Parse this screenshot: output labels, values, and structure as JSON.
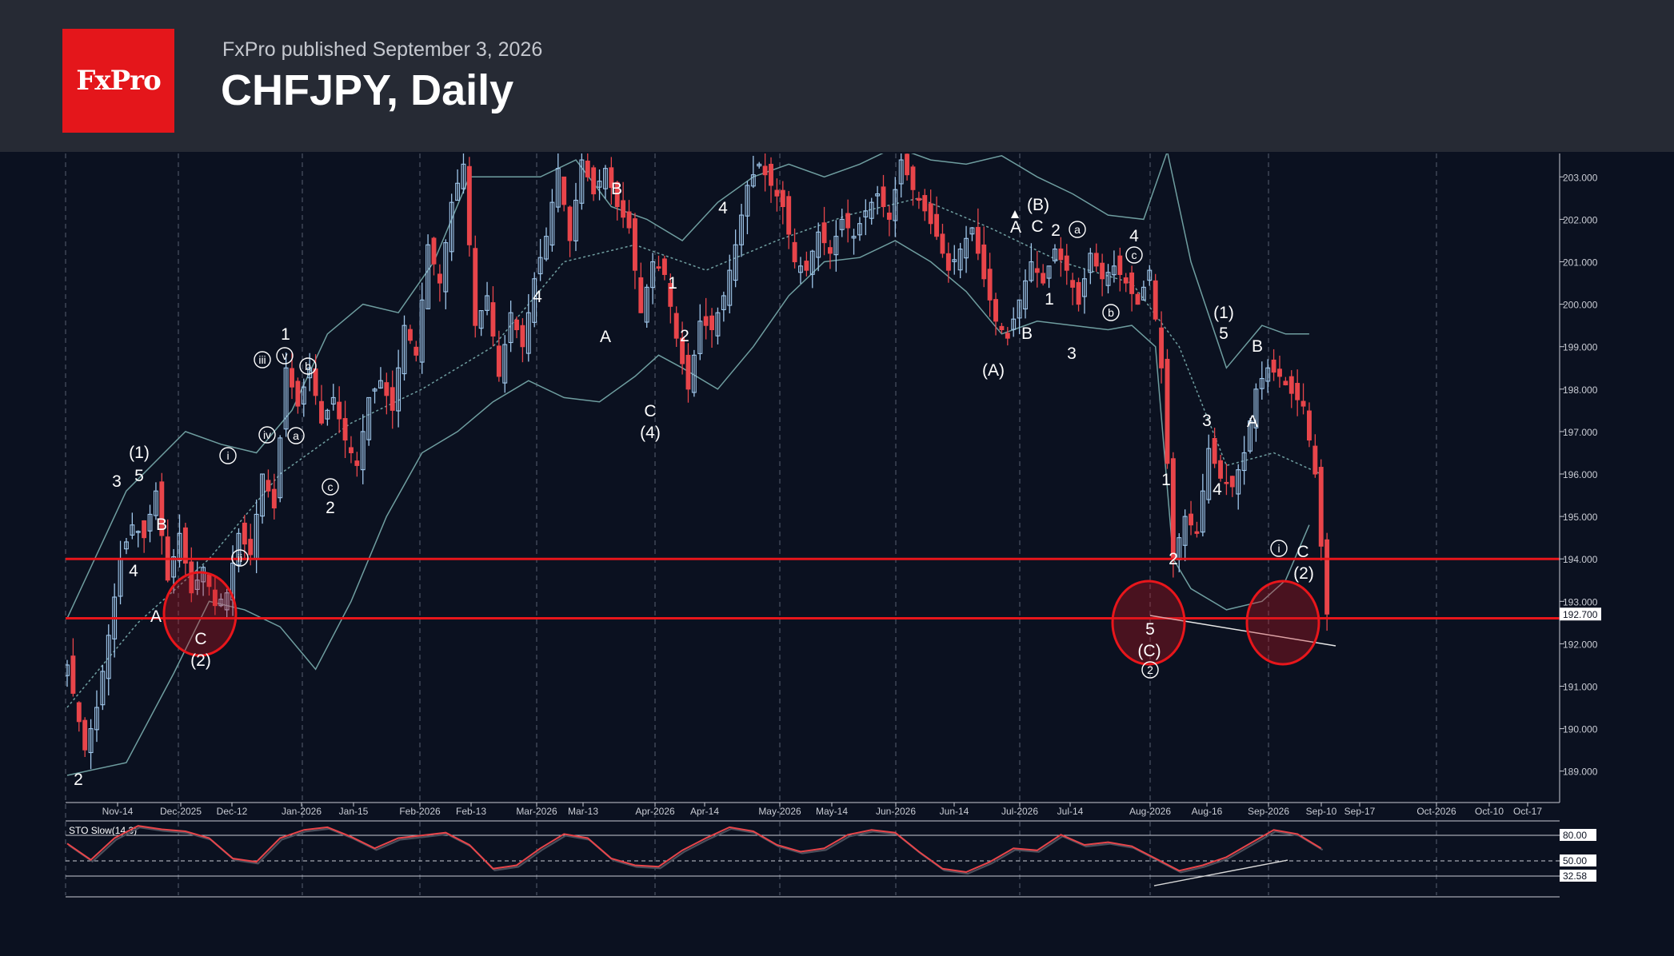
{
  "header": {
    "logo_text": "FxPro",
    "published": "FxPro published September 3, 2026",
    "title": "CHFJPY, Daily"
  },
  "colors": {
    "up": "#9fc6ea",
    "down": "#e8454a",
    "level": "#e8161b",
    "band": "#6f9ea0",
    "background": "#0b1120"
  },
  "chart_data": {
    "type": "candlestick",
    "symbol": "CHFJPY",
    "timeframe": "Daily",
    "ylim": [
      188.3,
      203.6
    ],
    "y_ticks": [
      "189.000",
      "190.000",
      "191.000",
      "192.000",
      "193.000",
      "194.000",
      "195.000",
      "196.000",
      "197.000",
      "198.000",
      "199.000",
      "200.000",
      "201.000",
      "202.000",
      "203.000"
    ],
    "x_ticks": [
      "Nov-14",
      "Dec-2025",
      "Dec-12",
      "Jan-2026",
      "Jan-15",
      "Feb-2026",
      "Feb-13",
      "Mar-2026",
      "Mar-13",
      "Apr-2026",
      "Apr-14",
      "May-2026",
      "May-14",
      "Jun-2026",
      "Jun-14",
      "Jul-2026",
      "Jul-14",
      "Aug-2026",
      "Aug-16",
      "Sep-2026",
      "Sep-10",
      "Sep-17",
      "Oct-2026",
      "Oct-10",
      "Oct-17"
    ],
    "last_price": "192.700",
    "levels": [
      194.0,
      192.6
    ],
    "close_path": [
      [
        0,
        191.5
      ],
      [
        3,
        189.5
      ],
      [
        5,
        190.5
      ],
      [
        7,
        192.2
      ],
      [
        9,
        194.0
      ],
      [
        11,
        194.8
      ],
      [
        13,
        194.5
      ],
      [
        15,
        195.6
      ],
      [
        17,
        193.5
      ],
      [
        19,
        194.6
      ],
      [
        21,
        193.2
      ],
      [
        23,
        193.8
      ],
      [
        25,
        192.9
      ],
      [
        27,
        193.2
      ],
      [
        29,
        194.6
      ],
      [
        31,
        194.1
      ],
      [
        33,
        196.0
      ],
      [
        35,
        195.2
      ],
      [
        37,
        198.5
      ],
      [
        39,
        197.6
      ],
      [
        41,
        198.5
      ],
      [
        43,
        197.2
      ],
      [
        45,
        197.8
      ],
      [
        47,
        196.8
      ],
      [
        49,
        196.2
      ],
      [
        51,
        197.8
      ],
      [
        53,
        198.2
      ],
      [
        55,
        197.5
      ],
      [
        57,
        199.5
      ],
      [
        59,
        198.8
      ],
      [
        61,
        201.4
      ],
      [
        63,
        200.5
      ],
      [
        65,
        202.4
      ],
      [
        67,
        203.3
      ],
      [
        69,
        199.5
      ],
      [
        71,
        200.2
      ],
      [
        73,
        198.3
      ],
      [
        75,
        199.8
      ],
      [
        77,
        199.0
      ],
      [
        79,
        200.6
      ],
      [
        81,
        201.6
      ],
      [
        83,
        203.2
      ],
      [
        85,
        201.5
      ],
      [
        87,
        203.4
      ],
      [
        89,
        202.6
      ],
      [
        91,
        203.2
      ],
      [
        93,
        202.3
      ],
      [
        95,
        201.8
      ],
      [
        97,
        199.8
      ],
      [
        99,
        201.0
      ],
      [
        101,
        200.7
      ],
      [
        103,
        199.2
      ],
      [
        105,
        198.0
      ],
      [
        107,
        199.6
      ],
      [
        109,
        199.4
      ],
      [
        111,
        200.2
      ],
      [
        113,
        201.4
      ],
      [
        115,
        202.8
      ],
      [
        117,
        203.3
      ],
      [
        119,
        202.8
      ],
      [
        121,
        202.3
      ],
      [
        123,
        201.0
      ],
      [
        125,
        200.8
      ],
      [
        127,
        201.7
      ],
      [
        129,
        201.2
      ],
      [
        131,
        202.0
      ],
      [
        133,
        201.6
      ],
      [
        135,
        202.2
      ],
      [
        137,
        202.6
      ],
      [
        139,
        202.0
      ],
      [
        141,
        203.4
      ],
      [
        143,
        202.7
      ],
      [
        145,
        202.2
      ],
      [
        147,
        201.6
      ],
      [
        149,
        200.8
      ],
      [
        151,
        201.3
      ],
      [
        153,
        201.8
      ],
      [
        155,
        200.6
      ],
      [
        157,
        199.6
      ],
      [
        159,
        199.2
      ],
      [
        161,
        200.1
      ],
      [
        163,
        201.0
      ],
      [
        165,
        200.5
      ],
      [
        167,
        201.3
      ],
      [
        169,
        200.8
      ],
      [
        171,
        200.0
      ],
      [
        173,
        201.2
      ],
      [
        175,
        200.6
      ],
      [
        177,
        200.9
      ],
      [
        179,
        200.5
      ],
      [
        181,
        200.0
      ],
      [
        183,
        200.8
      ],
      [
        185,
        198.5
      ],
      [
        187,
        194.0
      ],
      [
        189,
        195.0
      ],
      [
        191,
        194.6
      ],
      [
        193,
        196.6
      ],
      [
        195,
        195.9
      ],
      [
        197,
        195.7
      ],
      [
        199,
        196.5
      ],
      [
        201,
        198.0
      ],
      [
        203,
        198.5
      ],
      [
        205,
        198.3
      ],
      [
        207,
        197.9
      ],
      [
        209,
        197.6
      ],
      [
        211,
        196.0
      ],
      [
        212,
        194.3
      ],
      [
        213,
        192.7
      ]
    ],
    "upper_band": [
      [
        0,
        192.6
      ],
      [
        10,
        195.6
      ],
      [
        20,
        197.0
      ],
      [
        26,
        196.7
      ],
      [
        32,
        196.5
      ],
      [
        38,
        197.5
      ],
      [
        44,
        199.3
      ],
      [
        50,
        200.0
      ],
      [
        56,
        199.8
      ],
      [
        62,
        201.0
      ],
      [
        68,
        203.0
      ],
      [
        74,
        203.0
      ],
      [
        80,
        203.0
      ],
      [
        86,
        203.4
      ],
      [
        92,
        202.3
      ],
      [
        98,
        202.0
      ],
      [
        104,
        201.5
      ],
      [
        110,
        202.4
      ],
      [
        116,
        203.0
      ],
      [
        122,
        203.3
      ],
      [
        128,
        203.0
      ],
      [
        134,
        203.3
      ],
      [
        140,
        203.7
      ],
      [
        146,
        203.4
      ],
      [
        152,
        203.3
      ],
      [
        158,
        203.5
      ],
      [
        164,
        203.0
      ],
      [
        170,
        202.6
      ],
      [
        176,
        202.1
      ],
      [
        182,
        202.0
      ],
      [
        186,
        203.6
      ],
      [
        190,
        201.0
      ],
      [
        196,
        198.5
      ],
      [
        202,
        199.5
      ],
      [
        206,
        199.3
      ],
      [
        210,
        199.3
      ]
    ],
    "lower_band": [
      [
        0,
        188.9
      ],
      [
        10,
        189.2
      ],
      [
        18,
        191.3
      ],
      [
        24,
        193.0
      ],
      [
        30,
        192.8
      ],
      [
        36,
        192.4
      ],
      [
        42,
        191.4
      ],
      [
        48,
        193.0
      ],
      [
        54,
        195.0
      ],
      [
        60,
        196.5
      ],
      [
        66,
        197.0
      ],
      [
        72,
        197.7
      ],
      [
        78,
        198.2
      ],
      [
        84,
        197.8
      ],
      [
        90,
        197.7
      ],
      [
        96,
        198.3
      ],
      [
        100,
        198.8
      ],
      [
        104,
        198.5
      ],
      [
        110,
        198.0
      ],
      [
        116,
        199.0
      ],
      [
        122,
        200.2
      ],
      [
        128,
        201.0
      ],
      [
        134,
        201.1
      ],
      [
        140,
        201.5
      ],
      [
        146,
        201.0
      ],
      [
        152,
        200.3
      ],
      [
        158,
        199.3
      ],
      [
        164,
        199.6
      ],
      [
        170,
        199.5
      ],
      [
        176,
        199.4
      ],
      [
        180,
        199.5
      ],
      [
        184,
        199.0
      ],
      [
        187,
        194.0
      ],
      [
        190,
        193.3
      ],
      [
        196,
        192.8
      ],
      [
        202,
        193.0
      ],
      [
        206,
        193.5
      ],
      [
        210,
        194.8
      ]
    ],
    "mid_band": [
      [
        0,
        190.5
      ],
      [
        12,
        192.5
      ],
      [
        24,
        194.0
      ],
      [
        36,
        196.0
      ],
      [
        48,
        197.2
      ],
      [
        60,
        198.0
      ],
      [
        72,
        199.0
      ],
      [
        84,
        201.0
      ],
      [
        96,
        201.4
      ],
      [
        108,
        200.8
      ],
      [
        120,
        201.5
      ],
      [
        132,
        202.1
      ],
      [
        144,
        202.5
      ],
      [
        156,
        201.8
      ],
      [
        168,
        201.0
      ],
      [
        180,
        200.5
      ],
      [
        188,
        199.0
      ],
      [
        196,
        196.2
      ],
      [
        204,
        196.5
      ],
      [
        212,
        196.0
      ]
    ],
    "stochastic": {
      "label": "STO Slow(14,3)",
      "levels": [
        "80.00",
        "50.00",
        "32.58"
      ],
      "values": [
        [
          0,
          62
        ],
        [
          4,
          38
        ],
        [
          8,
          70
        ],
        [
          12,
          88
        ],
        [
          16,
          83
        ],
        [
          20,
          80
        ],
        [
          24,
          70
        ],
        [
          28,
          40
        ],
        [
          32,
          35
        ],
        [
          36,
          70
        ],
        [
          40,
          82
        ],
        [
          44,
          86
        ],
        [
          48,
          72
        ],
        [
          52,
          55
        ],
        [
          56,
          70
        ],
        [
          60,
          74
        ],
        [
          64,
          78
        ],
        [
          68,
          60
        ],
        [
          72,
          25
        ],
        [
          76,
          30
        ],
        [
          80,
          55
        ],
        [
          84,
          76
        ],
        [
          88,
          70
        ],
        [
          92,
          40
        ],
        [
          96,
          30
        ],
        [
          100,
          28
        ],
        [
          104,
          52
        ],
        [
          108,
          70
        ],
        [
          112,
          86
        ],
        [
          116,
          80
        ],
        [
          120,
          60
        ],
        [
          124,
          50
        ],
        [
          128,
          55
        ],
        [
          132,
          75
        ],
        [
          136,
          82
        ],
        [
          140,
          78
        ],
        [
          144,
          50
        ],
        [
          148,
          25
        ],
        [
          152,
          20
        ],
        [
          156,
          35
        ],
        [
          160,
          55
        ],
        [
          164,
          52
        ],
        [
          168,
          75
        ],
        [
          172,
          60
        ],
        [
          176,
          64
        ],
        [
          180,
          58
        ],
        [
          184,
          40
        ],
        [
          188,
          22
        ],
        [
          192,
          30
        ],
        [
          196,
          42
        ],
        [
          200,
          62
        ],
        [
          204,
          82
        ],
        [
          208,
          76
        ],
        [
          212,
          55
        ]
      ]
    }
  },
  "wave_labels": [
    {
      "t": "2",
      "x": 98,
      "y": 982,
      "size": 21
    },
    {
      "t": "3",
      "x": 146,
      "y": 609,
      "size": 21
    },
    {
      "t": "(1)",
      "x": 174,
      "y": 573,
      "size": 21
    },
    {
      "t": "5",
      "x": 174,
      "y": 602,
      "size": 21
    },
    {
      "t": "B",
      "x": 202,
      "y": 663,
      "size": 21
    },
    {
      "t": "4",
      "x": 167,
      "y": 721,
      "size": 21
    },
    {
      "t": "A",
      "x": 195,
      "y": 778,
      "size": 21
    },
    {
      "t": "C",
      "x": 251,
      "y": 806,
      "size": 21
    },
    {
      "t": "(2)",
      "x": 251,
      "y": 833,
      "size": 21
    },
    {
      "t": "1",
      "x": 357,
      "y": 425,
      "size": 21
    },
    {
      "t": "2",
      "x": 413,
      "y": 642,
      "size": 21
    },
    {
      "t": "B",
      "x": 771,
      "y": 243,
      "size": 21
    },
    {
      "t": "4",
      "x": 672,
      "y": 378,
      "size": 21
    },
    {
      "t": "A",
      "x": 757,
      "y": 428,
      "size": 21
    },
    {
      "t": "1",
      "x": 841,
      "y": 361,
      "size": 21
    },
    {
      "t": "2",
      "x": 856,
      "y": 427,
      "size": 21
    },
    {
      "t": "C",
      "x": 813,
      "y": 521,
      "size": 21
    },
    {
      "t": "(4)",
      "x": 813,
      "y": 548,
      "size": 21
    },
    {
      "t": "4",
      "x": 904,
      "y": 267,
      "size": 21
    },
    {
      "t": "A",
      "x": 1270,
      "y": 291,
      "size": 21
    },
    {
      "t": "(B)",
      "x": 1298,
      "y": 263,
      "size": 21
    },
    {
      "t": "C",
      "x": 1297,
      "y": 290,
      "size": 21
    },
    {
      "t": "2",
      "x": 1320,
      "y": 295,
      "size": 21
    },
    {
      "t": "1",
      "x": 1312,
      "y": 381,
      "size": 21
    },
    {
      "t": "B",
      "x": 1284,
      "y": 424,
      "size": 21
    },
    {
      "t": "3",
      "x": 1340,
      "y": 449,
      "size": 21
    },
    {
      "t": "(A)",
      "x": 1242,
      "y": 470,
      "size": 21
    },
    {
      "t": "4",
      "x": 1418,
      "y": 302,
      "size": 21
    },
    {
      "t": "1",
      "x": 1458,
      "y": 607,
      "size": 21
    },
    {
      "t": "2",
      "x": 1467,
      "y": 706,
      "size": 21
    },
    {
      "t": "3",
      "x": 1509,
      "y": 533,
      "size": 21
    },
    {
      "t": "4",
      "x": 1522,
      "y": 619,
      "size": 21
    },
    {
      "t": "(1)",
      "x": 1530,
      "y": 398,
      "size": 21
    },
    {
      "t": "5",
      "x": 1530,
      "y": 424,
      "size": 21
    },
    {
      "t": "B",
      "x": 1572,
      "y": 440,
      "size": 21
    },
    {
      "t": "A",
      "x": 1566,
      "y": 534,
      "size": 21
    },
    {
      "t": "C",
      "x": 1629,
      "y": 697,
      "size": 21
    },
    {
      "t": "(2)",
      "x": 1630,
      "y": 724,
      "size": 21
    },
    {
      "t": "5",
      "x": 1438,
      "y": 794,
      "size": 21
    },
    {
      "t": "(C)",
      "x": 1437,
      "y": 821,
      "size": 21
    }
  ],
  "circled_labels": [
    {
      "t": "i",
      "x": 285,
      "y": 570
    },
    {
      "t": "iii",
      "x": 328,
      "y": 450
    },
    {
      "t": "v",
      "x": 356,
      "y": 445
    },
    {
      "t": "b",
      "x": 385,
      "y": 458
    },
    {
      "t": "iv",
      "x": 334,
      "y": 544
    },
    {
      "t": "a",
      "x": 370,
      "y": 545
    },
    {
      "t": "ii",
      "x": 300,
      "y": 698
    },
    {
      "t": "c",
      "x": 413,
      "y": 609
    },
    {
      "t": "a",
      "x": 1347,
      "y": 287
    },
    {
      "t": "c",
      "x": 1418,
      "y": 319
    },
    {
      "t": "b",
      "x": 1389,
      "y": 391
    },
    {
      "t": "2",
      "x": 1438,
      "y": 838
    },
    {
      "t": "i",
      "x": 1599,
      "y": 686
    }
  ]
}
